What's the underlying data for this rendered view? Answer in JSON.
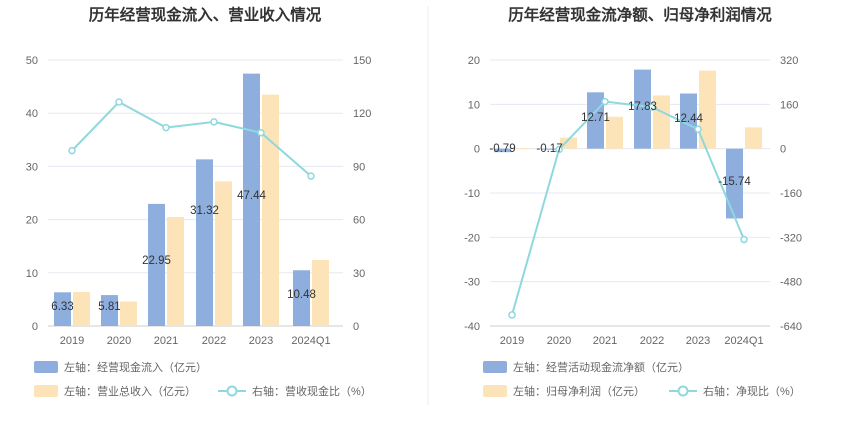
{
  "charts": [
    {
      "title": "历年经营现金流入、营业收入情况",
      "legend": [
        {
          "kind": "bar",
          "color": "#8eaedd",
          "label": "左轴：经营现金流入（亿元）"
        },
        {
          "kind": "bar",
          "color": "#fde4b8",
          "label": "左轴：营业总收入（亿元）"
        },
        {
          "kind": "line",
          "color": "#8fd8de",
          "label": "右轴：营收现金比（%）"
        }
      ]
    },
    {
      "title": "历年经营现金流净额、归母净利润情况",
      "legend": [
        {
          "kind": "bar",
          "color": "#8eaedd",
          "label": "左轴：经营活动现金流净额（亿元）"
        },
        {
          "kind": "bar",
          "color": "#fde4b8",
          "label": "左轴：归母净利润（亿元）"
        },
        {
          "kind": "line",
          "color": "#8fd8de",
          "label": "右轴：净现比（%）"
        }
      ]
    }
  ],
  "chart_data": [
    {
      "type": "bar",
      "title": "历年经营现金流入、营业收入情况",
      "categories": [
        "2019",
        "2020",
        "2021",
        "2022",
        "2023",
        "2024Q1"
      ],
      "ylim": [
        0,
        50
      ],
      "y_ticks": [
        0,
        10,
        20,
        30,
        40,
        50
      ],
      "y2lim": [
        0,
        150
      ],
      "y2_ticks": [
        0,
        30,
        60,
        90,
        120,
        150
      ],
      "grid": true,
      "legend_position": "bottom",
      "series": [
        {
          "name": "左轴：经营现金流入（亿元）",
          "axis": "left",
          "type": "bar",
          "color": "#8eaedd",
          "values": [
            6.33,
            5.81,
            22.95,
            31.32,
            47.44,
            10.48
          ],
          "labels": [
            "6.33",
            "5.81",
            "22.95",
            "31.32",
            "47.44",
            "10.48"
          ]
        },
        {
          "name": "左轴：营业总收入（亿元）",
          "axis": "left",
          "type": "bar",
          "color": "#fde4b8",
          "values": [
            6.4,
            4.6,
            20.5,
            27.2,
            43.5,
            12.4
          ]
        },
        {
          "name": "右轴：营收现金比（%）",
          "axis": "right",
          "type": "line",
          "color": "#8fd8de",
          "values": [
            98.9,
            126.3,
            111.9,
            115.1,
            109.0,
            84.5
          ]
        }
      ]
    },
    {
      "type": "bar",
      "title": "历年经营现金流净额、归母净利润情况",
      "categories": [
        "2019",
        "2020",
        "2021",
        "2022",
        "2023",
        "2024Q1"
      ],
      "ylim": [
        -40,
        20
      ],
      "y_ticks": [
        -40,
        -30,
        -20,
        -10,
        0,
        10,
        20
      ],
      "y2lim": [
        -640,
        320
      ],
      "y2_ticks": [
        -640,
        -480,
        -320,
        -160,
        0,
        160,
        320
      ],
      "grid": true,
      "legend_position": "bottom",
      "series": [
        {
          "name": "左轴：经营活动现金流净额（亿元）",
          "axis": "left",
          "type": "bar",
          "color": "#8eaedd",
          "values": [
            -0.79,
            -0.17,
            12.71,
            17.83,
            12.44,
            -15.74
          ],
          "labels": [
            "-0.79",
            "-0.17",
            "12.71",
            "17.83",
            "12.44",
            "-15.74"
          ]
        },
        {
          "name": "左轴：归母净利润（亿元）",
          "axis": "left",
          "type": "bar",
          "color": "#fde4b8",
          "values": [
            0.1,
            2.5,
            7.2,
            12.0,
            17.6,
            4.8
          ]
        },
        {
          "name": "右轴：净现比（%）",
          "axis": "right",
          "type": "line",
          "color": "#8fd8de",
          "values": [
            -600,
            -3,
            170,
            150,
            70,
            -328
          ]
        }
      ]
    }
  ]
}
